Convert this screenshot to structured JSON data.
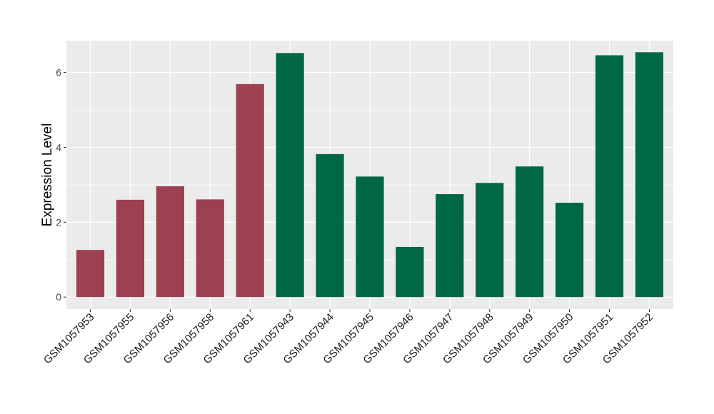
{
  "chart_data": {
    "type": "bar",
    "title": "",
    "xlabel": "",
    "ylabel": "Expression Level",
    "ylim": [
      -0.32,
      6.85
    ],
    "yticks": [
      0,
      2,
      4,
      6
    ],
    "grid": true,
    "legend": "none",
    "categories": [
      "GSM1057953",
      "GSM1057955",
      "GSM1057956",
      "GSM1057958",
      "GSM1057961",
      "GSM1057943",
      "GSM1057944",
      "GSM1057945",
      "GSM1057946",
      "GSM1057947",
      "GSM1057948",
      "GSM1057949",
      "GSM1057950",
      "GSM1057951",
      "GSM1057952"
    ],
    "values": [
      1.26,
      2.6,
      2.96,
      2.61,
      5.69,
      6.52,
      3.82,
      3.22,
      1.34,
      2.75,
      3.05,
      3.49,
      2.52,
      6.46,
      6.54
    ],
    "groups": [
      "a",
      "a",
      "a",
      "a",
      "a",
      "b",
      "b",
      "b",
      "b",
      "b",
      "b",
      "b",
      "b",
      "b",
      "b"
    ],
    "group_colors": {
      "a": "#9b4150",
      "b": "#006747"
    },
    "panel_background": "#ebebeb",
    "grid_color": "#ffffff"
  }
}
